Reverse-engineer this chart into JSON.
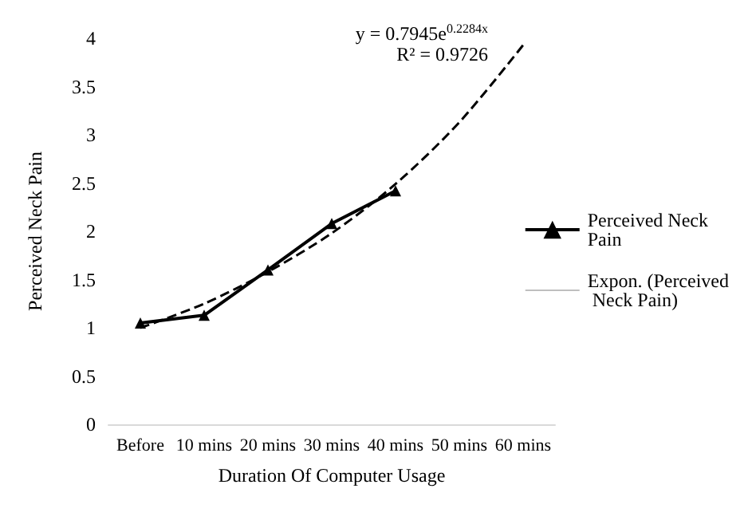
{
  "chart_data": {
    "type": "line",
    "xlabel": "Duration Of Computer Usage",
    "ylabel": "Perceived Neck Pain",
    "categories": [
      "Before",
      "10 mins",
      "20 mins",
      "30 mins",
      "40 mins",
      "50 mins",
      "60 mins"
    ],
    "series": [
      {
        "name": "Perceived Neck Pain",
        "color": "#000000",
        "values": [
          1.05,
          1.13,
          1.6,
          2.08,
          2.42,
          null,
          null
        ],
        "marker": "triangle",
        "line_style": "solid"
      },
      {
        "name": "Expon. (Perceived Neck Pain)",
        "color": "#000000",
        "values": [
          1.0,
          1.25,
          1.58,
          1.98,
          2.49,
          3.13,
          3.93
        ],
        "marker": "none",
        "line_style": "dashed"
      }
    ],
    "ylim": [
      0,
      4
    ],
    "yticks": [
      0,
      0.5,
      1,
      1.5,
      2,
      2.5,
      3,
      3.5,
      4
    ],
    "grid": false,
    "legend": "right",
    "annotations": [
      "y = 0.7945e$^{0.2284x}$",
      "R² = 0.9726"
    ]
  }
}
